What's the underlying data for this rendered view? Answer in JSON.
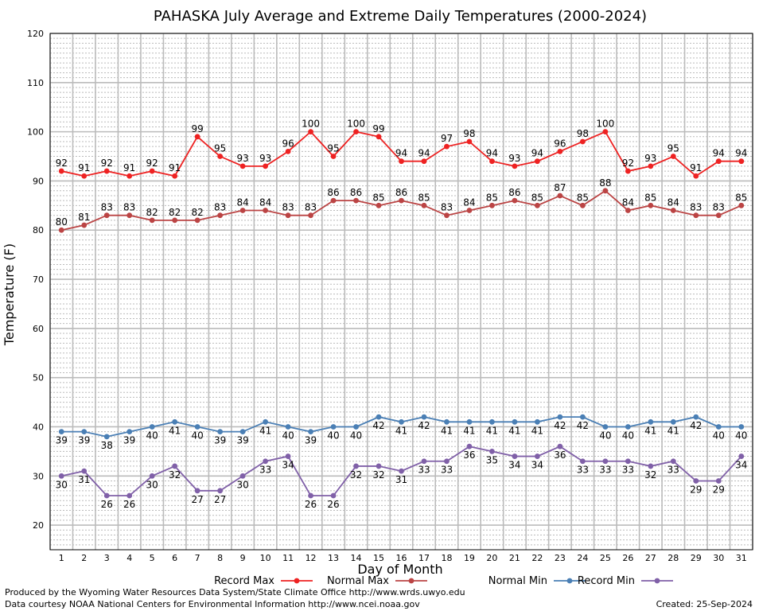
{
  "chart_data": {
    "type": "line",
    "title": "PAHASKA July Average and Extreme Daily Temperatures (2000-2024)",
    "xlabel": "Day of Month",
    "ylabel": "Temperature (F)",
    "x": [
      1,
      2,
      3,
      4,
      5,
      6,
      7,
      8,
      9,
      10,
      11,
      12,
      13,
      14,
      15,
      16,
      17,
      18,
      19,
      20,
      21,
      22,
      23,
      24,
      25,
      26,
      27,
      28,
      29,
      30,
      31
    ],
    "xlim": [
      0.5,
      31.5
    ],
    "ylim": [
      15,
      120
    ],
    "yticks": [
      20,
      30,
      40,
      50,
      60,
      70,
      80,
      90,
      100,
      110,
      120
    ],
    "grid": true,
    "legend_position": "bottom",
    "series": [
      {
        "name": "Record Max",
        "color": "#ee2222",
        "label_pos": "above",
        "values": [
          92,
          91,
          92,
          91,
          92,
          91,
          99,
          95,
          93,
          93,
          96,
          100,
          95,
          100,
          99,
          94,
          94,
          97,
          98,
          94,
          93,
          94,
          96,
          98,
          100,
          92,
          93,
          95,
          91,
          94,
          94
        ]
      },
      {
        "name": "Normal Max",
        "color": "#bb4444",
        "label_pos": "above",
        "values": [
          80,
          81,
          83,
          83,
          82,
          82,
          82,
          83,
          84,
          84,
          83,
          83,
          86,
          86,
          85,
          86,
          85,
          83,
          84,
          85,
          86,
          85,
          87,
          85,
          88,
          84,
          85,
          84,
          83,
          83,
          85
        ]
      },
      {
        "name": "Normal Min",
        "color": "#4a7fb5",
        "label_pos": "below",
        "values": [
          39,
          39,
          38,
          39,
          40,
          41,
          40,
          39,
          39,
          41,
          40,
          39,
          40,
          40,
          42,
          41,
          42,
          41,
          41,
          41,
          41,
          41,
          42,
          42,
          40,
          40,
          41,
          41,
          42,
          40,
          40
        ]
      },
      {
        "name": "Record Min",
        "color": "#8060a8",
        "label_pos": "below",
        "values": [
          30,
          31,
          26,
          26,
          30,
          32,
          27,
          27,
          30,
          33,
          34,
          26,
          26,
          32,
          32,
          31,
          33,
          33,
          36,
          35,
          34,
          34,
          36,
          33,
          33,
          33,
          32,
          33,
          29,
          29,
          34
        ]
      }
    ]
  },
  "footer": {
    "produced_by": "Produced by the Wyoming Water Resources Data System/State Climate Office http://www.wrds.uwyo.edu",
    "data_courtesy": "Data courtesy NOAA National Centers for Environmental Information http://www.ncei.noaa.gov",
    "created": "Created:  25-Sep-2024"
  }
}
